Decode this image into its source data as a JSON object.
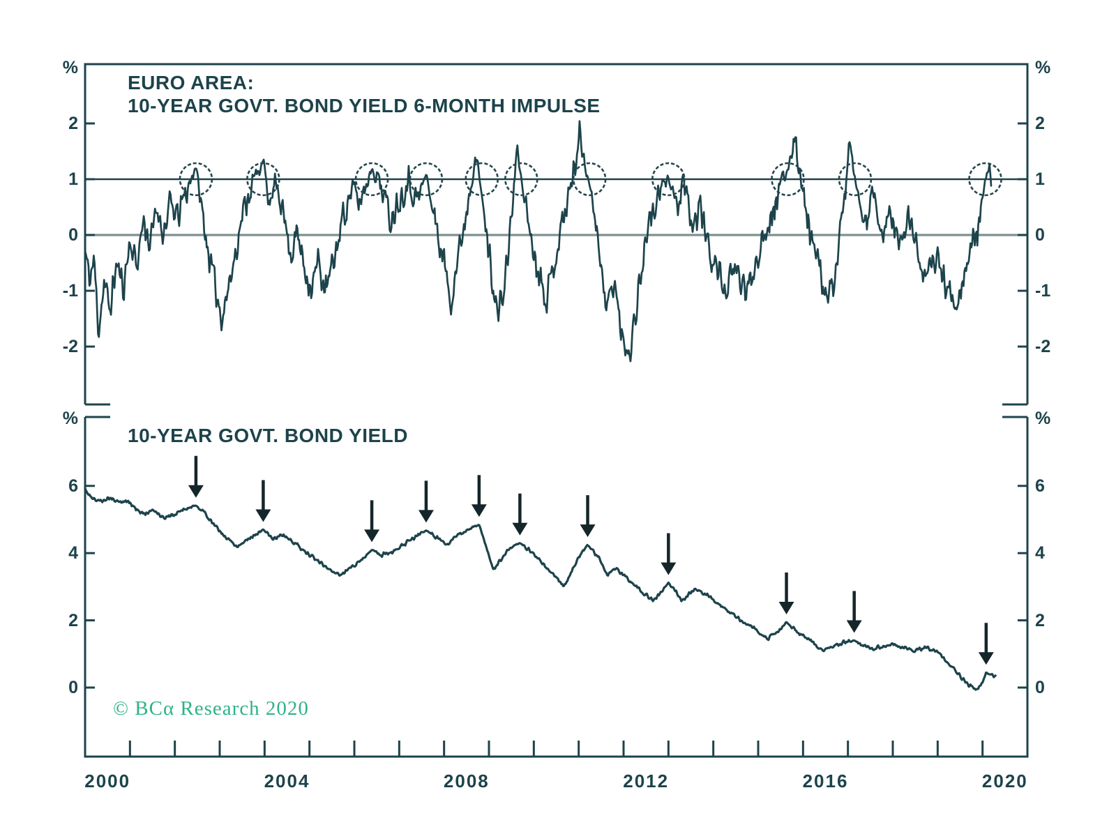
{
  "colors": {
    "ink": "#1d434b",
    "series": "#1d434b",
    "zero_line": "#7f908f",
    "one_line": "#1d434b",
    "circle": "#24464d",
    "arrow": "#15262b",
    "logo_green": "#2db289",
    "background": "#ffffff"
  },
  "figure": {
    "copyright": "© BCα Research 2020"
  },
  "x_axis": {
    "min": 2000,
    "max": 2021,
    "tick_step": 1,
    "labels": [
      {
        "text": "2000",
        "year": 2000.5
      },
      {
        "text": "2004",
        "year": 2004.5
      },
      {
        "text": "2008",
        "year": 2008.5
      },
      {
        "text": "2012",
        "year": 2012.5
      },
      {
        "text": "2016",
        "year": 2016.5
      },
      {
        "text": "2020",
        "year": 2020.5
      }
    ]
  },
  "chart_data": [
    {
      "type": "line",
      "panel": "top",
      "title": "EURO AREA:",
      "subtitle": "10-YEAR GOVT. BOND YIELD 6-MONTH IMPULSE",
      "unit": "%",
      "ylim": [
        -3.05,
        3.06
      ],
      "yticks": [
        2,
        1,
        0,
        -1,
        -2
      ],
      "ref_lines": [
        {
          "value": 1,
          "style": "dark"
        },
        {
          "value": 0,
          "style": "gray"
        }
      ],
      "legend": "none",
      "grid": "off",
      "noise": 0.24,
      "seed": 11,
      "x_start": 2000.0,
      "x_end": 2020.2,
      "circles": {
        "center_value": 1.0,
        "years": [
          2002.47,
          2003.97,
          2006.39,
          2007.6,
          2008.84,
          2009.72,
          2011.24,
          2013.0,
          2015.66,
          2017.16,
          2020.06
        ]
      },
      "anchors": [
        [
          2000.0,
          -0.3
        ],
        [
          2000.1,
          -0.8
        ],
        [
          2000.2,
          -0.45
        ],
        [
          2000.3,
          -1.7
        ],
        [
          2000.42,
          -0.85
        ],
        [
          2000.55,
          -1.35
        ],
        [
          2000.7,
          -0.5
        ],
        [
          2000.85,
          -0.95
        ],
        [
          2001.0,
          -0.1
        ],
        [
          2001.15,
          -0.55
        ],
        [
          2001.3,
          0.3
        ],
        [
          2001.45,
          -0.2
        ],
        [
          2001.6,
          0.5
        ],
        [
          2001.75,
          0.05
        ],
        [
          2001.9,
          0.55
        ],
        [
          2002.05,
          0.3
        ],
        [
          2002.25,
          0.75
        ],
        [
          2002.47,
          1.25
        ],
        [
          2002.6,
          0.45
        ],
        [
          2002.75,
          -0.3
        ],
        [
          2002.9,
          -0.95
        ],
        [
          2003.05,
          -1.45
        ],
        [
          2003.25,
          -0.75
        ],
        [
          2003.45,
          0.15
        ],
        [
          2003.65,
          0.8
        ],
        [
          2003.8,
          1.0
        ],
        [
          2003.97,
          1.38
        ],
        [
          2004.1,
          0.5
        ],
        [
          2004.3,
          0.95
        ],
        [
          2004.45,
          0.25
        ],
        [
          2004.6,
          -0.35
        ],
        [
          2004.72,
          0.05
        ],
        [
          2004.9,
          -0.6
        ],
        [
          2005.05,
          -0.95
        ],
        [
          2005.2,
          -0.45
        ],
        [
          2005.35,
          -1.05
        ],
        [
          2005.55,
          -0.45
        ],
        [
          2005.75,
          0.35
        ],
        [
          2005.95,
          0.85
        ],
        [
          2006.1,
          0.55
        ],
        [
          2006.39,
          1.2
        ],
        [
          2006.6,
          0.9
        ],
        [
          2006.8,
          0.3
        ],
        [
          2007.0,
          0.65
        ],
        [
          2007.2,
          1.0
        ],
        [
          2007.4,
          0.6
        ],
        [
          2007.6,
          1.1
        ],
        [
          2007.8,
          0.25
        ],
        [
          2008.0,
          -0.5
        ],
        [
          2008.15,
          -1.15
        ],
        [
          2008.3,
          -0.45
        ],
        [
          2008.5,
          0.45
        ],
        [
          2008.68,
          1.5
        ],
        [
          2008.8,
          0.95
        ],
        [
          2009.0,
          -0.3
        ],
        [
          2009.2,
          -1.5
        ],
        [
          2009.35,
          -0.9
        ],
        [
          2009.5,
          0.3
        ],
        [
          2009.63,
          1.55
        ],
        [
          2009.72,
          1.0
        ],
        [
          2009.85,
          0.4
        ],
        [
          2010.0,
          -0.3
        ],
        [
          2010.15,
          -0.75
        ],
        [
          2010.3,
          -1.1
        ],
        [
          2010.45,
          -0.5
        ],
        [
          2010.6,
          0.1
        ],
        [
          2010.75,
          0.6
        ],
        [
          2010.9,
          1.2
        ],
        [
          2011.02,
          1.8
        ],
        [
          2011.22,
          1.0
        ],
        [
          2011.4,
          0.2
        ],
        [
          2011.6,
          -1.35
        ],
        [
          2011.8,
          -0.8
        ],
        [
          2011.95,
          -1.85
        ],
        [
          2012.15,
          -2.05
        ],
        [
          2012.35,
          -0.9
        ],
        [
          2012.55,
          0.2
        ],
        [
          2012.75,
          0.6
        ],
        [
          2013.0,
          1.05
        ],
        [
          2013.2,
          0.5
        ],
        [
          2013.35,
          0.85
        ],
        [
          2013.55,
          0.1
        ],
        [
          2013.7,
          0.55
        ],
        [
          2013.9,
          -0.25
        ],
        [
          2014.1,
          -0.65
        ],
        [
          2014.3,
          -1.0
        ],
        [
          2014.5,
          -0.6
        ],
        [
          2014.75,
          -1.05
        ],
        [
          2014.95,
          -0.45
        ],
        [
          2015.15,
          0.1
        ],
        [
          2015.4,
          0.6
        ],
        [
          2015.65,
          1.15
        ],
        [
          2015.82,
          1.8
        ],
        [
          2016.0,
          0.7
        ],
        [
          2016.15,
          0.1
        ],
        [
          2016.35,
          -0.6
        ],
        [
          2016.55,
          -1.25
        ],
        [
          2016.75,
          -0.5
        ],
        [
          2016.95,
          0.9
        ],
        [
          2017.05,
          1.55
        ],
        [
          2017.15,
          1.0
        ],
        [
          2017.35,
          0.2
        ],
        [
          2017.55,
          0.65
        ],
        [
          2017.75,
          -0.05
        ],
        [
          2017.95,
          0.45
        ],
        [
          2018.15,
          -0.25
        ],
        [
          2018.35,
          0.35
        ],
        [
          2018.6,
          -0.45
        ],
        [
          2018.8,
          -0.75
        ],
        [
          2019.0,
          -0.35
        ],
        [
          2019.2,
          -1.0
        ],
        [
          2019.45,
          -1.1
        ],
        [
          2019.65,
          -0.55
        ],
        [
          2019.85,
          0.0
        ],
        [
          2020.0,
          0.6
        ],
        [
          2020.06,
          1.0
        ],
        [
          2020.14,
          1.15
        ],
        [
          2020.2,
          0.9
        ]
      ]
    },
    {
      "type": "line",
      "panel": "bottom",
      "title": "10-YEAR GOVT. BOND YIELD",
      "unit": "%",
      "ylim": [
        -2.05,
        8.05
      ],
      "yticks": [
        6,
        4,
        2,
        0
      ],
      "legend": "none",
      "grid": "off",
      "noise": 0.05,
      "seed": 5,
      "x_start": 2000.0,
      "x_end": 2020.3,
      "arrows": {
        "years": [
          2002.47,
          2003.97,
          2006.39,
          2007.6,
          2008.78,
          2009.69,
          2011.2,
          2013.0,
          2015.63,
          2017.14,
          2020.08
        ],
        "peak_values": [
          5.42,
          4.7,
          4.1,
          4.68,
          4.85,
          4.3,
          4.25,
          3.12,
          1.95,
          1.4,
          0.45
        ]
      },
      "anchors": [
        [
          2000.0,
          5.9
        ],
        [
          2000.15,
          5.62
        ],
        [
          2000.35,
          5.55
        ],
        [
          2000.55,
          5.65
        ],
        [
          2000.75,
          5.5
        ],
        [
          2000.95,
          5.55
        ],
        [
          2001.15,
          5.3
        ],
        [
          2001.35,
          5.15
        ],
        [
          2001.55,
          5.28
        ],
        [
          2001.75,
          5.05
        ],
        [
          2001.95,
          5.12
        ],
        [
          2002.15,
          5.28
        ],
        [
          2002.47,
          5.42
        ],
        [
          2002.7,
          5.15
        ],
        [
          2002.9,
          4.8
        ],
        [
          2003.15,
          4.45
        ],
        [
          2003.4,
          4.2
        ],
        [
          2003.6,
          4.4
        ],
        [
          2003.97,
          4.7
        ],
        [
          2004.2,
          4.42
        ],
        [
          2004.4,
          4.55
        ],
        [
          2004.65,
          4.32
        ],
        [
          2004.9,
          4.05
        ],
        [
          2005.15,
          3.8
        ],
        [
          2005.4,
          3.55
        ],
        [
          2005.7,
          3.35
        ],
        [
          2005.95,
          3.6
        ],
        [
          2006.2,
          3.85
        ],
        [
          2006.39,
          4.1
        ],
        [
          2006.6,
          3.95
        ],
        [
          2006.9,
          4.05
        ],
        [
          2007.2,
          4.35
        ],
        [
          2007.6,
          4.68
        ],
        [
          2007.85,
          4.45
        ],
        [
          2008.1,
          4.28
        ],
        [
          2008.35,
          4.58
        ],
        [
          2008.78,
          4.85
        ],
        [
          2009.1,
          3.5
        ],
        [
          2009.4,
          4.05
        ],
        [
          2009.69,
          4.3
        ],
        [
          2009.95,
          4.05
        ],
        [
          2010.2,
          3.7
        ],
        [
          2010.45,
          3.35
        ],
        [
          2010.67,
          3.02
        ],
        [
          2010.85,
          3.45
        ],
        [
          2011.0,
          3.9
        ],
        [
          2011.2,
          4.25
        ],
        [
          2011.45,
          3.85
        ],
        [
          2011.65,
          3.35
        ],
        [
          2011.8,
          3.55
        ],
        [
          2012.05,
          3.3
        ],
        [
          2012.3,
          3.0
        ],
        [
          2012.5,
          2.75
        ],
        [
          2012.67,
          2.58
        ],
        [
          2013.0,
          3.12
        ],
        [
          2013.3,
          2.6
        ],
        [
          2013.6,
          2.92
        ],
        [
          2013.85,
          2.75
        ],
        [
          2014.1,
          2.5
        ],
        [
          2014.4,
          2.2
        ],
        [
          2014.7,
          1.95
        ],
        [
          2014.95,
          1.75
        ],
        [
          2015.2,
          1.45
        ],
        [
          2015.4,
          1.6
        ],
        [
          2015.63,
          1.95
        ],
        [
          2015.9,
          1.6
        ],
        [
          2016.1,
          1.5
        ],
        [
          2016.3,
          1.25
        ],
        [
          2016.5,
          1.12
        ],
        [
          2016.7,
          1.25
        ],
        [
          2016.9,
          1.35
        ],
        [
          2017.14,
          1.4
        ],
        [
          2017.4,
          1.22
        ],
        [
          2017.6,
          1.15
        ],
        [
          2017.8,
          1.25
        ],
        [
          2018.0,
          1.3
        ],
        [
          2018.25,
          1.18
        ],
        [
          2018.5,
          1.1
        ],
        [
          2018.75,
          1.2
        ],
        [
          2019.0,
          1.05
        ],
        [
          2019.25,
          0.7
        ],
        [
          2019.5,
          0.35
        ],
        [
          2019.7,
          0.05
        ],
        [
          2019.85,
          -0.06
        ],
        [
          2020.0,
          0.15
        ],
        [
          2020.08,
          0.45
        ],
        [
          2020.3,
          0.3
        ]
      ]
    }
  ]
}
